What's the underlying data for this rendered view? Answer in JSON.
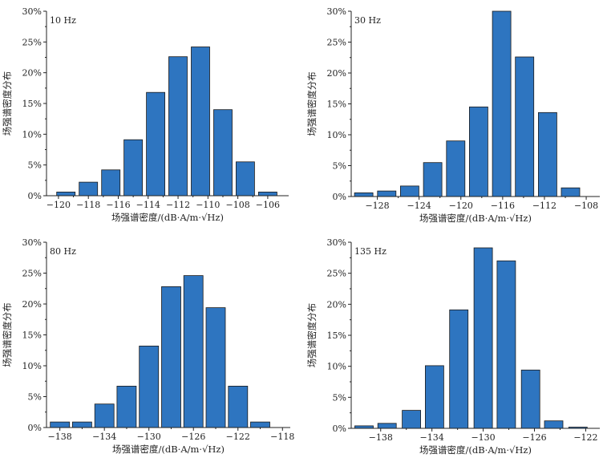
{
  "chart_data": [
    {
      "type": "bar",
      "panel_label": "10 Hz",
      "xlabel": "场强谱密度/(dB·A/m·√Hz)",
      "ylabel": "场强谱密度分布",
      "x_range": [
        -120.8,
        -104.6
      ],
      "x_ticks": [
        -120,
        -118,
        -116,
        -114,
        -112,
        -110,
        -108,
        -106
      ],
      "y_ticks": [
        0,
        5,
        10,
        15,
        20,
        25,
        30
      ],
      "ylim": [
        0,
        30
      ],
      "tick_suffix": "%",
      "bars": [
        {
          "x": -119.5,
          "value": 0.6
        },
        {
          "x": -118.0,
          "value": 2.2
        },
        {
          "x": -116.5,
          "value": 4.2
        },
        {
          "x": -115.0,
          "value": 9.1
        },
        {
          "x": -113.5,
          "value": 16.8
        },
        {
          "x": -112.0,
          "value": 22.6
        },
        {
          "x": -110.5,
          "value": 24.2
        },
        {
          "x": -109.0,
          "value": 14.0
        },
        {
          "x": -107.5,
          "value": 5.5
        },
        {
          "x": -106.0,
          "value": 0.6
        }
      ]
    },
    {
      "type": "bar",
      "panel_label": "30 Hz",
      "xlabel": "场强谱密度/(dB·A/m·√Hz)",
      "ylabel": "场强谱密度分布",
      "x_range": [
        -130.5,
        -106.7
      ],
      "x_ticks": [
        -128,
        -124,
        -120,
        -116,
        -112,
        -108
      ],
      "y_ticks": [
        0,
        5,
        10,
        15,
        20,
        25,
        30
      ],
      "ylim": [
        0,
        30
      ],
      "tick_suffix": "%",
      "bars": [
        {
          "x": -129.3,
          "value": 0.6
        },
        {
          "x": -127.1,
          "value": 0.9
        },
        {
          "x": -124.9,
          "value": 1.7
        },
        {
          "x": -122.7,
          "value": 5.5
        },
        {
          "x": -120.5,
          "value": 9.0
        },
        {
          "x": -118.3,
          "value": 14.5
        },
        {
          "x": -116.1,
          "value": 30.0
        },
        {
          "x": -113.9,
          "value": 22.6
        },
        {
          "x": -111.7,
          "value": 13.6
        },
        {
          "x": -109.5,
          "value": 1.4
        }
      ]
    },
    {
      "type": "bar",
      "panel_label": "80 Hz",
      "xlabel": "场强谱密度/(dB·A/m·√Hz)",
      "ylabel": "场强谱密度分布",
      "x_range": [
        -139.2,
        -117.3
      ],
      "x_ticks": [
        -138,
        -134,
        -130,
        -126,
        -122,
        -118
      ],
      "y_ticks": [
        0,
        5,
        10,
        15,
        20,
        25,
        30
      ],
      "ylim": [
        0,
        30
      ],
      "tick_suffix": "%",
      "bars": [
        {
          "x": -138.0,
          "value": 0.9
        },
        {
          "x": -136.0,
          "value": 0.9
        },
        {
          "x": -134.0,
          "value": 3.8
        },
        {
          "x": -132.0,
          "value": 6.7
        },
        {
          "x": -130.0,
          "value": 13.2
        },
        {
          "x": -128.0,
          "value": 22.8
        },
        {
          "x": -126.0,
          "value": 24.6
        },
        {
          "x": -124.0,
          "value": 19.4
        },
        {
          "x": -122.0,
          "value": 6.7
        },
        {
          "x": -120.0,
          "value": 0.9
        }
      ]
    },
    {
      "type": "bar",
      "panel_label": "135 Hz",
      "xlabel": "场强谱密度/(dB·A/m·√Hz)",
      "ylabel": "场强谱密度分布",
      "x_range": [
        -140.3,
        -120.9
      ],
      "x_ticks": [
        -138,
        -134,
        -130,
        -126,
        -122
      ],
      "y_ticks": [
        0,
        5,
        10,
        15,
        20,
        25,
        30
      ],
      "ylim": [
        0,
        30
      ],
      "tick_suffix": "%",
      "bars": [
        {
          "x": -139.3,
          "value": 0.4
        },
        {
          "x": -137.5,
          "value": 0.8
        },
        {
          "x": -135.6,
          "value": 2.9
        },
        {
          "x": -133.8,
          "value": 10.1
        },
        {
          "x": -131.9,
          "value": 19.1
        },
        {
          "x": -130.0,
          "value": 29.1
        },
        {
          "x": -128.2,
          "value": 27.0
        },
        {
          "x": -126.3,
          "value": 9.4
        },
        {
          "x": -124.5,
          "value": 1.2
        },
        {
          "x": -122.6,
          "value": 0.2
        }
      ]
    }
  ]
}
